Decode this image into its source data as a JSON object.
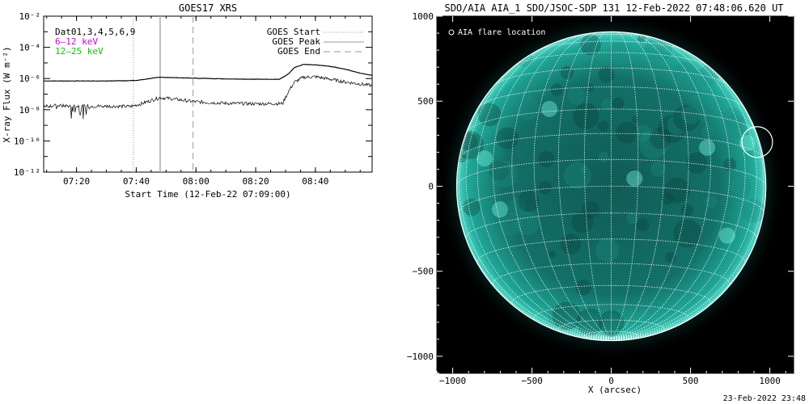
{
  "footer_timestamp": "23-Feb-2022 23:48",
  "chart_data": [
    {
      "type": "line",
      "title": "GOES17 XRS",
      "xlabel": "Start Time (12-Feb-22 07:09:00)",
      "ylabel": "X-ray Flux (W m⁻²)",
      "y_scale": "log",
      "ylim": [
        1e-12,
        0.01
      ],
      "xlim": [
        "07:09",
        "08:59"
      ],
      "x_ticks": [
        "07:20",
        "07:40",
        "08:00",
        "08:20",
        "08:40"
      ],
      "y_ticks": [
        "10⁻¹²",
        "10⁻¹⁰",
        "10⁻⁸",
        "10⁻⁶",
        "10⁻⁴",
        "10⁻²"
      ],
      "legend_left": [
        "Dat01,3,4,5,6,9",
        "6–12 keV",
        "12–25 keV"
      ],
      "legend_left_colors": [
        "#000000",
        "#d400d4",
        "#00cc00"
      ],
      "legend_right": [
        "GOES Start",
        "GOES Peak",
        "GOES End"
      ],
      "event_markers": [
        {
          "name": "GOES Start",
          "time": "07:39",
          "style": "dotted",
          "color": "#aaaaaa"
        },
        {
          "name": "GOES Peak",
          "time": "07:48",
          "style": "solid",
          "color": "#aaaaaa"
        },
        {
          "name": "GOES End",
          "time": "07:59",
          "style": "dashed",
          "color": "#aaaaaa"
        }
      ],
      "series": [
        {
          "x": [
            "07:09",
            "07:20",
            "07:30",
            "07:40",
            "07:43",
            "07:46",
            "07:48",
            "07:52",
            "08:00",
            "08:10",
            "08:20",
            "08:28",
            "08:31",
            "08:33",
            "08:36",
            "08:40",
            "08:45",
            "08:50",
            "08:55",
            "08:59"
          ],
          "y": [
            7e-07,
            7e-07,
            7e-07,
            7.5e-07,
            9e-07,
            1.1e-06,
            1.2e-06,
            1.15e-06,
            1.05e-06,
            9.5e-07,
            9e-07,
            9e-07,
            2e-06,
            5e-06,
            8e-06,
            7.5e-06,
            6e-06,
            4e-06,
            2.2e-06,
            1.6e-06
          ]
        },
        {
          "x": [
            "07:09",
            "07:15",
            "07:20",
            "07:30",
            "07:38",
            "07:42",
            "07:45",
            "07:48",
            "07:52",
            "08:00",
            "08:10",
            "08:20",
            "08:29",
            "08:31",
            "08:33",
            "08:36",
            "08:40",
            "08:45",
            "08:50",
            "08:55",
            "08:59"
          ],
          "y": [
            1.8e-08,
            1.8e-08,
            1.7e-08,
            1.7e-08,
            1.6e-08,
            2.5e-08,
            4e-08,
            6e-08,
            5e-08,
            3.2e-08,
            2.6e-08,
            2.4e-08,
            2.5e-08,
            1.5e-07,
            6e-07,
            1.2e-06,
            1.3e-06,
            9e-07,
            6e-07,
            4.5e-07,
            3.5e-07
          ]
        }
      ]
    },
    {
      "type": "image",
      "title": "SDO/AIA AIA_1 SDO/JSOC-SDP 131 12-Feb-2022 07:48:06.620 UT",
      "xlabel": "X (arcsec)",
      "ylabel": "",
      "xlim": [
        -1100,
        1150
      ],
      "ylim": [
        -1100,
        1000
      ],
      "x_ticks": [
        -1000,
        -500,
        0,
        500,
        1000
      ],
      "y_ticks": [
        -1000,
        -500,
        0,
        500,
        1000
      ],
      "legend": "AIA flare location",
      "flare_location": {
        "x": 920,
        "y": 260
      },
      "disk_radius_arcsec": 975,
      "disk_color": "#1aa89a"
    }
  ]
}
